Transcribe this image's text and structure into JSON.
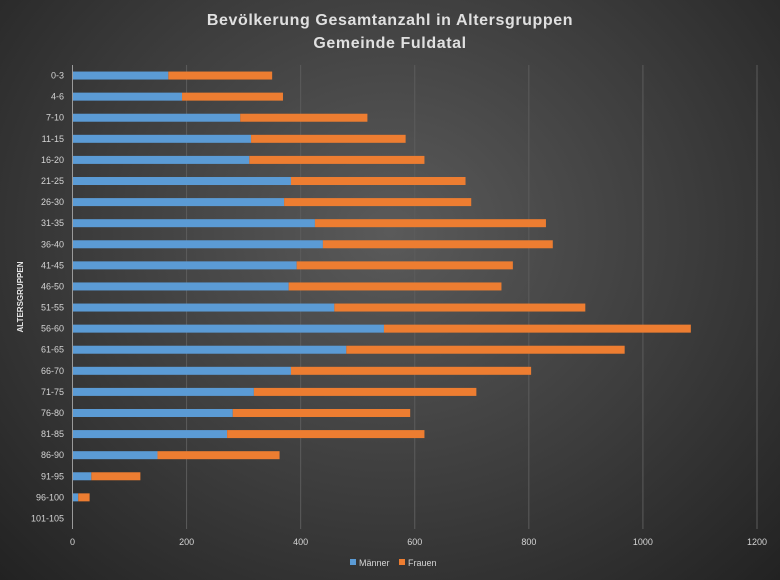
{
  "chart_data": {
    "type": "bar",
    "orientation": "horizontal",
    "stacked": true,
    "title_line1": "Bevölkerung Gesamtanzahl in Altersgruppen",
    "title_line2": "Gemeinde Fuldatal",
    "xlabel": "",
    "ylabel": "ALTERSGRUPPEN",
    "xlim": [
      0,
      1200
    ],
    "xticks": [
      0,
      200,
      400,
      600,
      800,
      1000,
      1200
    ],
    "grid": true,
    "legend_position": "bottom",
    "categories": [
      "0-3",
      "4-6",
      "7-10",
      "11-15",
      "16-20",
      "21-25",
      "26-30",
      "31-35",
      "36-40",
      "41-45",
      "46-50",
      "51-55",
      "56-60",
      "61-65",
      "66-70",
      "71-75",
      "76-80",
      "81-85",
      "86-90",
      "91-95",
      "96-100",
      "101-105"
    ],
    "series": [
      {
        "name": "Männer",
        "color": "#5b9bd5",
        "values": [
          168,
          192,
          294,
          313,
          310,
          383,
          371,
          425,
          439,
          393,
          379,
          459,
          546,
          480,
          383,
          318,
          281,
          271,
          149,
          33,
          10,
          0
        ]
      },
      {
        "name": "Frauen",
        "color": "#ed7d31",
        "values": [
          182,
          177,
          223,
          271,
          307,
          306,
          328,
          405,
          403,
          379,
          373,
          440,
          538,
          488,
          421,
          390,
          311,
          346,
          214,
          86,
          20,
          0
        ]
      }
    ]
  }
}
